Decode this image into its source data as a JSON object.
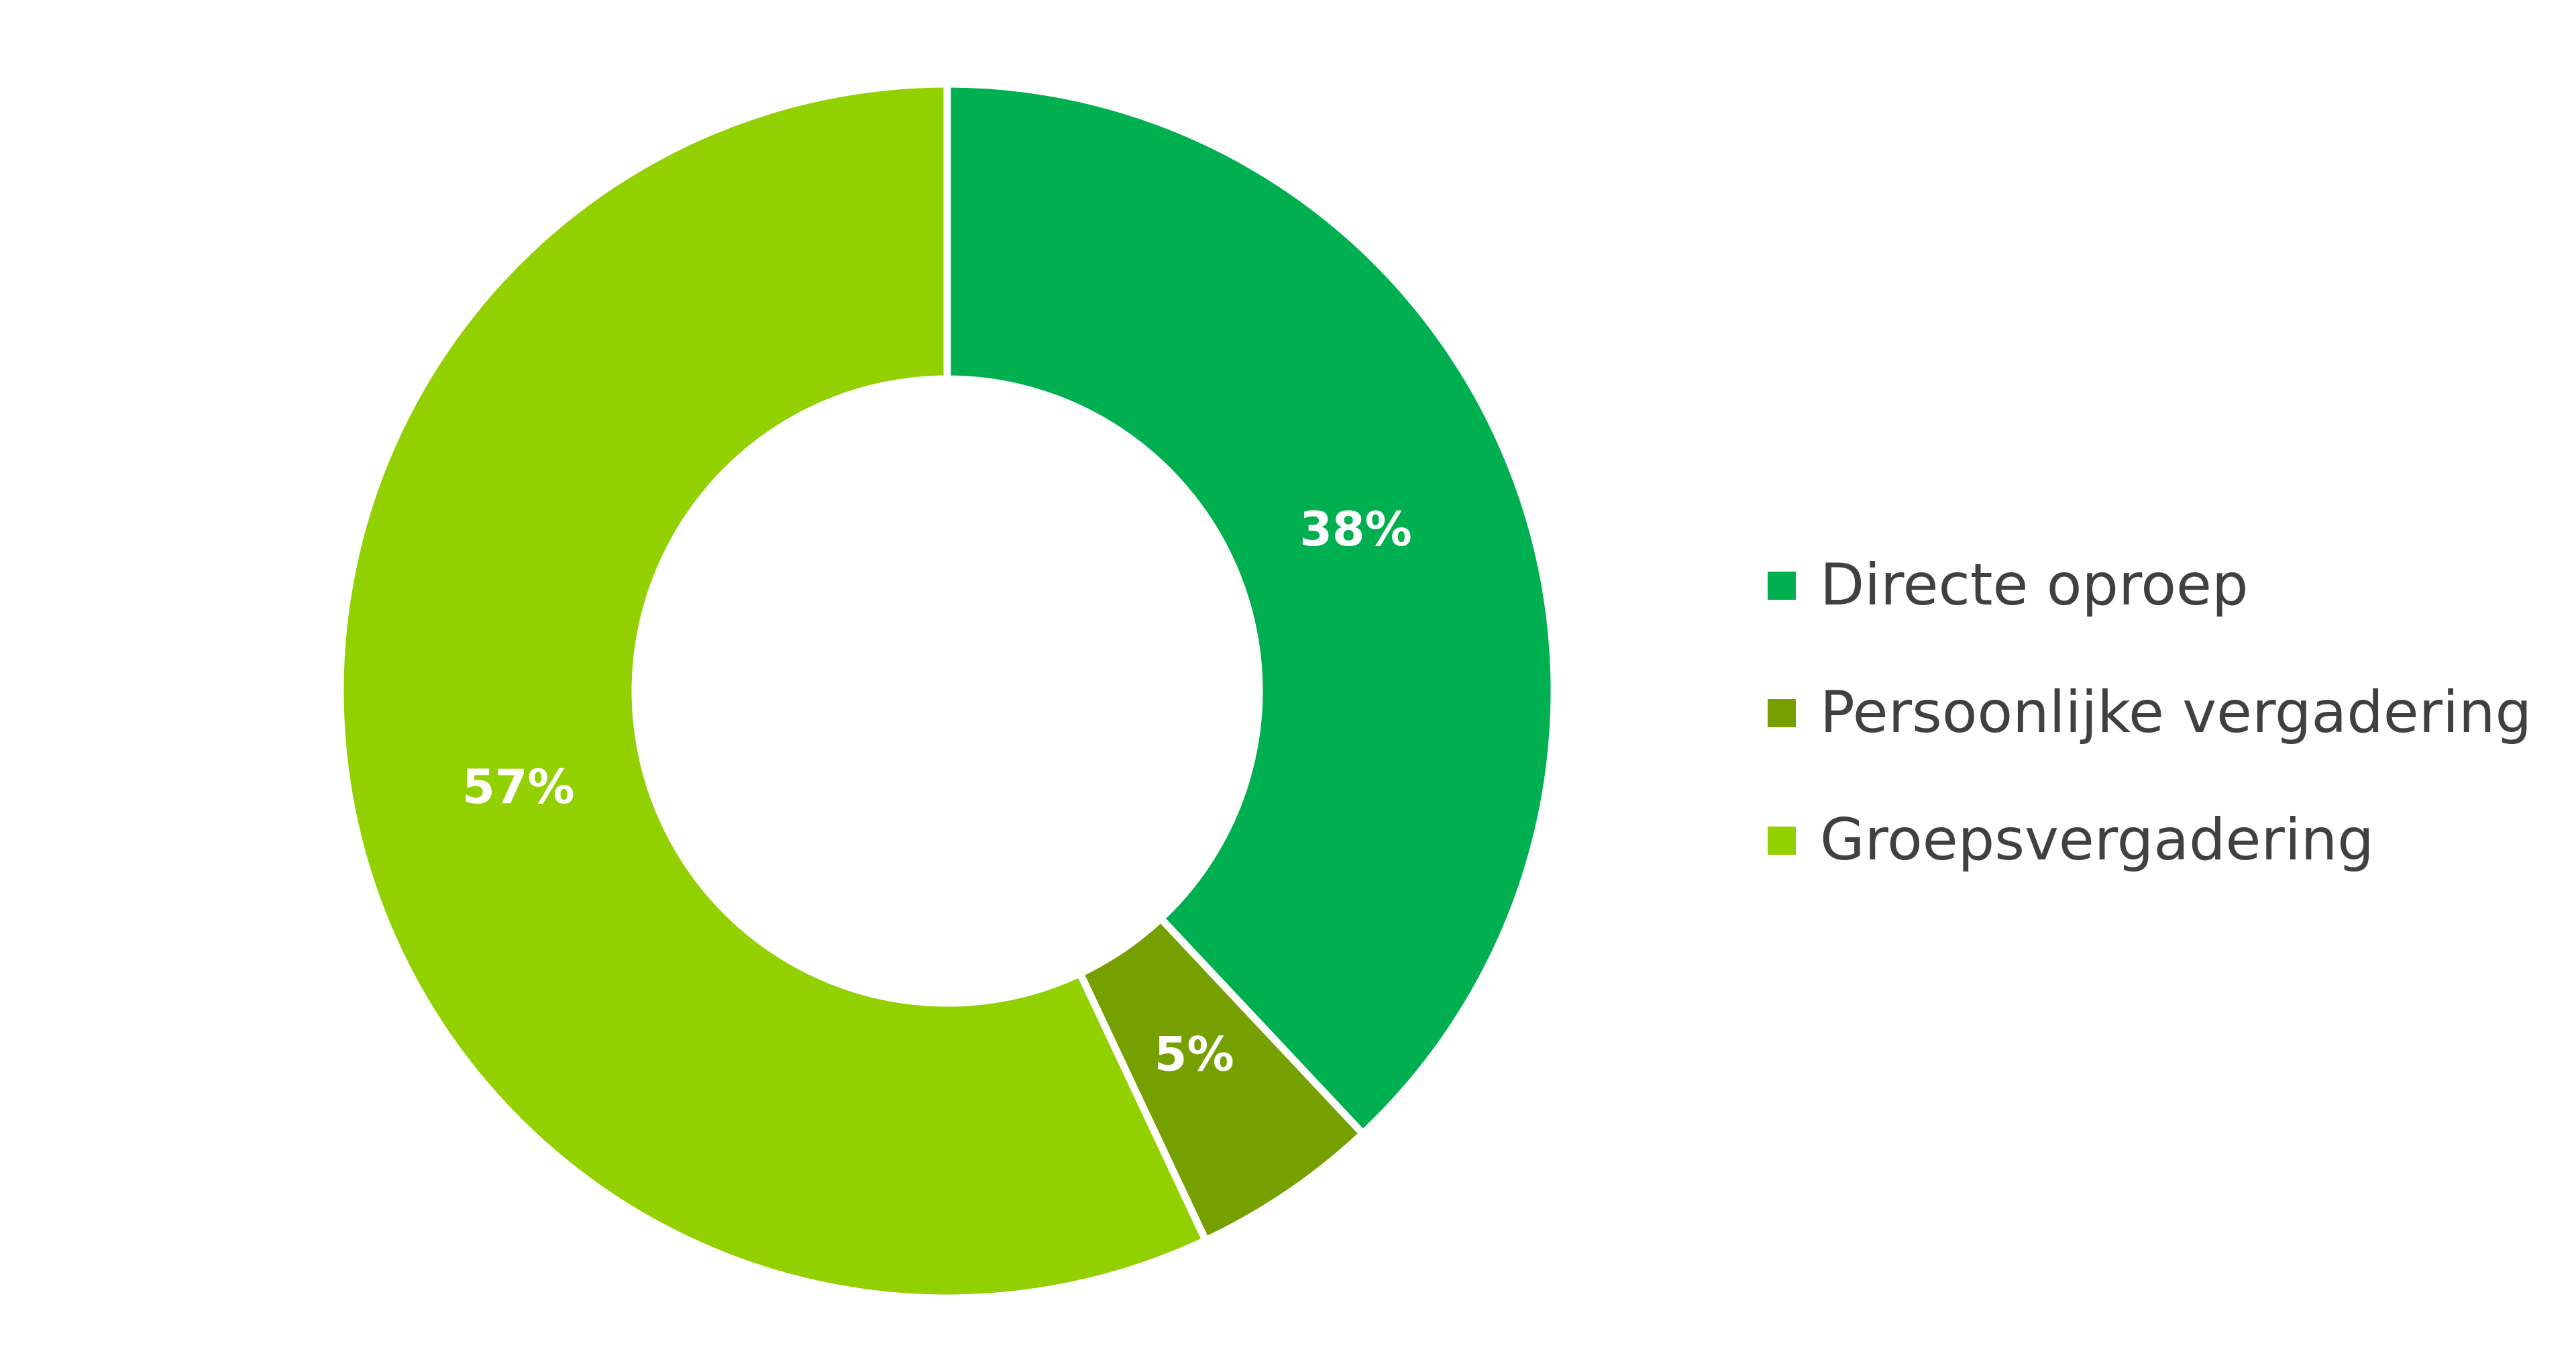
{
  "chart_data": {
    "type": "pie",
    "variant": "donut",
    "title": "",
    "categories": [
      "Directe oproep",
      "Persoonlijke vergadering",
      "Groepsvergadering"
    ],
    "values": [
      38,
      5,
      57
    ],
    "value_labels": [
      "38%",
      "5%",
      "57%"
    ],
    "unit": "%",
    "colors": [
      "#00B050",
      "#76A000",
      "#92D000"
    ],
    "legend_position": "right",
    "start_angle": "top, clockwise"
  }
}
